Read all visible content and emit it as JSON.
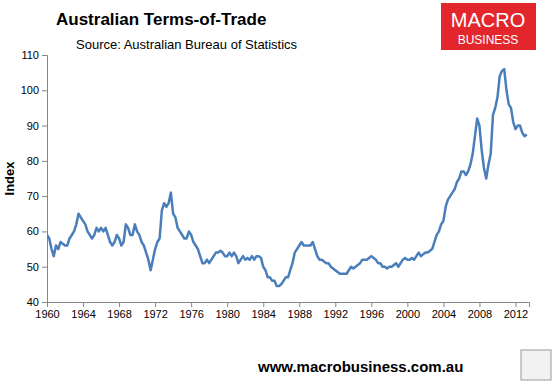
{
  "chart_data": {
    "type": "line",
    "title": "Australian Terms-of-Trade",
    "subtitle": "Source: Australian Bureau of Statistics",
    "y_label": "Index",
    "annotations": [
      "MACRO",
      "BUSINESS",
      "www.macrobusiness.com.au"
    ],
    "color": "#4a7ebb",
    "grid": false,
    "xlim": [
      1960,
      2013.5
    ],
    "xticks": [
      1960,
      1964,
      1968,
      1972,
      1976,
      1980,
      1984,
      1988,
      1992,
      1996,
      2000,
      2004,
      2008,
      2012
    ],
    "ylim": [
      40,
      110
    ],
    "yticks": [
      40,
      50,
      60,
      70,
      80,
      90,
      100,
      110
    ],
    "x": [
      1960,
      1960.25,
      1960.5,
      1960.75,
      1961,
      1961.25,
      1961.5,
      1961.75,
      1962,
      1962.25,
      1962.5,
      1962.75,
      1963,
      1963.25,
      1963.5,
      1963.75,
      1964,
      1964.25,
      1964.5,
      1964.75,
      1965,
      1965.25,
      1965.5,
      1965.75,
      1966,
      1966.25,
      1966.5,
      1966.75,
      1967,
      1967.25,
      1967.5,
      1967.75,
      1968,
      1968.25,
      1968.5,
      1968.75,
      1969,
      1969.25,
      1969.5,
      1969.75,
      1970,
      1970.25,
      1970.5,
      1970.75,
      1971,
      1971.25,
      1971.5,
      1971.75,
      1972,
      1972.25,
      1972.5,
      1972.75,
      1973,
      1973.25,
      1973.5,
      1973.75,
      1974,
      1974.25,
      1974.5,
      1974.75,
      1975,
      1975.25,
      1975.5,
      1975.75,
      1976,
      1976.25,
      1976.5,
      1976.75,
      1977,
      1977.25,
      1977.5,
      1977.75,
      1978,
      1978.25,
      1978.5,
      1978.75,
      1979,
      1979.25,
      1979.5,
      1979.75,
      1980,
      1980.25,
      1980.5,
      1980.75,
      1981,
      1981.25,
      1981.5,
      1981.75,
      1982,
      1982.25,
      1982.5,
      1982.75,
      1983,
      1983.25,
      1983.5,
      1983.75,
      1984,
      1984.25,
      1984.5,
      1984.75,
      1985,
      1985.25,
      1985.5,
      1985.75,
      1986,
      1986.25,
      1986.5,
      1986.75,
      1987,
      1987.25,
      1987.5,
      1987.75,
      1988,
      1988.25,
      1988.5,
      1988.75,
      1989,
      1989.25,
      1989.5,
      1989.75,
      1990,
      1990.25,
      1990.5,
      1990.75,
      1991,
      1991.25,
      1991.5,
      1991.75,
      1992,
      1992.25,
      1992.5,
      1992.75,
      1993,
      1993.25,
      1993.5,
      1993.75,
      1994,
      1994.25,
      1994.5,
      1994.75,
      1995,
      1995.25,
      1995.5,
      1995.75,
      1996,
      1996.25,
      1996.5,
      1996.75,
      1997,
      1997.25,
      1997.5,
      1997.75,
      1998,
      1998.25,
      1998.5,
      1998.75,
      1999,
      1999.25,
      1999.5,
      1999.75,
      2000,
      2000.25,
      2000.5,
      2000.75,
      2001,
      2001.25,
      2001.5,
      2001.75,
      2002,
      2002.25,
      2002.5,
      2002.75,
      2003,
      2003.25,
      2003.5,
      2003.75,
      2004,
      2004.25,
      2004.5,
      2004.75,
      2005,
      2005.25,
      2005.5,
      2005.75,
      2006,
      2006.25,
      2006.5,
      2006.75,
      2007,
      2007.25,
      2007.5,
      2007.75,
      2008,
      2008.25,
      2008.5,
      2008.75,
      2009,
      2009.25,
      2009.5,
      2009.75,
      2010,
      2010.25,
      2010.5,
      2010.75,
      2011,
      2011.25,
      2011.5,
      2011.75,
      2012,
      2012.25,
      2012.5,
      2012.75,
      2013,
      2013.25
    ],
    "values": [
      59,
      58,
      55,
      53,
      56,
      55,
      57,
      56.5,
      56,
      56,
      58,
      59,
      60,
      62,
      65,
      64,
      63,
      62,
      60,
      59,
      58,
      59,
      61,
      60,
      61,
      60,
      61,
      59,
      57,
      56,
      57,
      59,
      58,
      56,
      57,
      62,
      61,
      59,
      59,
      62,
      60,
      59,
      57,
      56,
      54,
      52,
      49,
      52,
      55,
      57,
      58,
      66,
      68,
      67,
      68,
      71,
      65,
      64,
      61,
      60,
      59,
      58,
      58,
      60,
      59,
      57,
      56,
      55,
      53,
      51,
      51,
      52,
      51,
      52,
      53,
      54,
      54,
      54.5,
      54,
      53,
      53,
      54,
      53,
      54,
      53,
      51,
      52,
      53,
      52,
      52.5,
      52,
      53,
      52,
      53,
      53,
      52.5,
      50,
      49,
      47,
      47,
      46,
      46,
      44.5,
      44.5,
      45,
      46,
      47,
      47,
      49,
      51,
      54,
      55,
      56,
      57,
      56,
      56,
      56,
      56,
      57,
      55,
      53,
      52,
      52,
      51.5,
      51,
      51,
      50,
      49.5,
      49,
      48.5,
      48,
      48,
      48,
      48,
      49,
      50,
      49.5,
      50,
      50.5,
      51,
      52,
      52,
      52,
      52.5,
      53,
      52.5,
      52,
      51,
      51,
      50,
      50,
      49.5,
      50,
      50,
      50.5,
      51,
      50,
      51,
      52,
      52.5,
      52,
      52,
      52.5,
      52,
      53,
      54,
      53,
      53.5,
      54,
      54,
      54.5,
      55,
      57,
      59,
      60,
      62,
      63,
      67,
      69,
      70,
      71,
      72,
      74,
      75,
      77,
      77,
      76,
      77,
      79,
      82,
      87,
      92,
      90,
      83,
      78,
      75,
      79,
      82,
      93,
      95,
      98,
      104,
      105.5,
      106,
      100,
      96,
      95,
      91,
      89,
      90,
      90,
      88,
      87,
      87.5
    ]
  }
}
